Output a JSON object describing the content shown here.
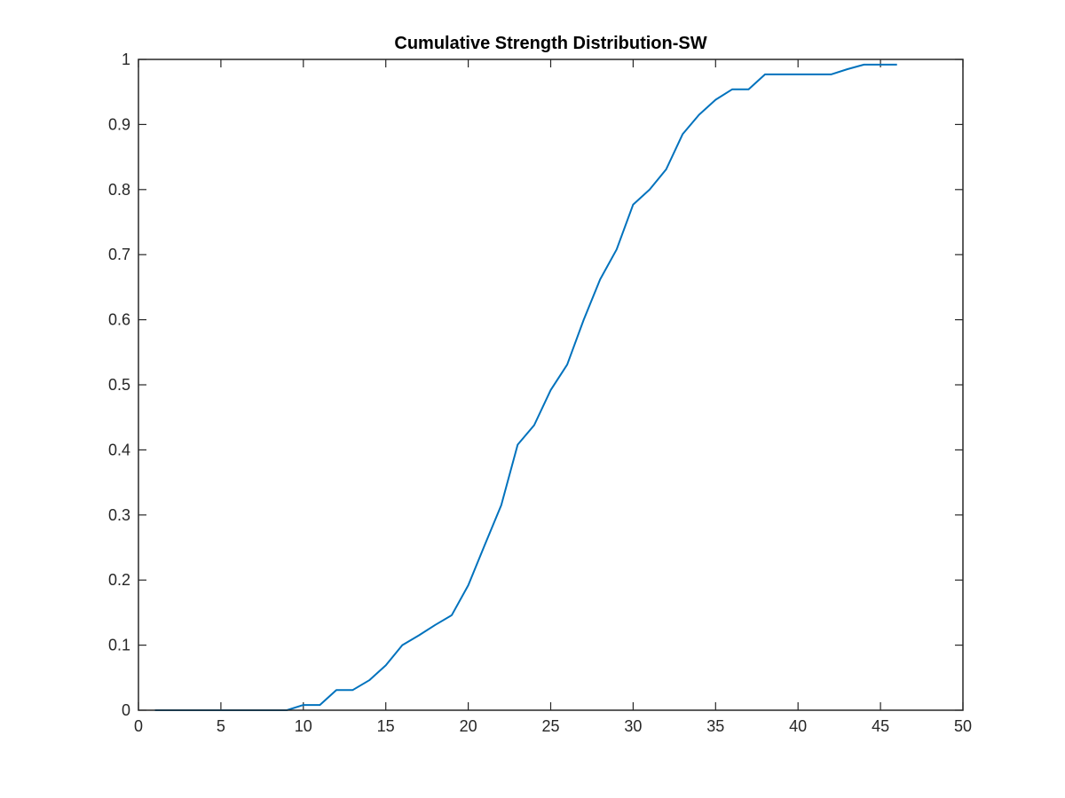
{
  "chart_data": {
    "type": "line",
    "title": "Cumulative Strength Distribution-SW",
    "xlabel": "",
    "ylabel": "",
    "xlim": [
      0,
      50
    ],
    "ylim": [
      0,
      1
    ],
    "x_ticks": [
      0,
      5,
      10,
      15,
      20,
      25,
      30,
      35,
      40,
      45,
      50
    ],
    "y_ticks": [
      0,
      0.1,
      0.2,
      0.3,
      0.4,
      0.5,
      0.6,
      0.7,
      0.8,
      0.9,
      1
    ],
    "x_tick_labels": [
      "0",
      "5",
      "10",
      "15",
      "20",
      "25",
      "30",
      "35",
      "40",
      "45",
      "50"
    ],
    "y_tick_labels": [
      "0",
      "0.1",
      "0.2",
      "0.3",
      "0.4",
      "0.5",
      "0.6",
      "0.7",
      "0.8",
      "0.9",
      "1"
    ],
    "grid": false,
    "box": true,
    "colors": {
      "line": "#0072bd",
      "axes": "#262626",
      "background": "#ffffff"
    },
    "series": [
      {
        "x": [
          1,
          2,
          3,
          4,
          5,
          6,
          7,
          8,
          9,
          10,
          11,
          12,
          13,
          14,
          15,
          16,
          17,
          18,
          19,
          20,
          21,
          22,
          23,
          24,
          25,
          26,
          27,
          28,
          29,
          30,
          31,
          32,
          33,
          34,
          35,
          36,
          37,
          38,
          39,
          40,
          41,
          42,
          43,
          44,
          45,
          46
        ],
        "y": [
          0,
          0,
          0,
          0,
          0,
          0,
          0,
          0,
          0,
          0.008,
          0.008,
          0.031,
          0.031,
          0.046,
          0.069,
          0.1,
          0.115,
          0.131,
          0.146,
          0.192,
          0.254,
          0.315,
          0.408,
          0.438,
          0.492,
          0.531,
          0.6,
          0.662,
          0.708,
          0.777,
          0.8,
          0.831,
          0.885,
          0.915,
          0.938,
          0.954,
          0.954,
          0.977,
          0.977,
          0.977,
          0.977,
          0.977,
          0.985,
          0.992,
          0.992,
          0.992
        ]
      }
    ]
  }
}
